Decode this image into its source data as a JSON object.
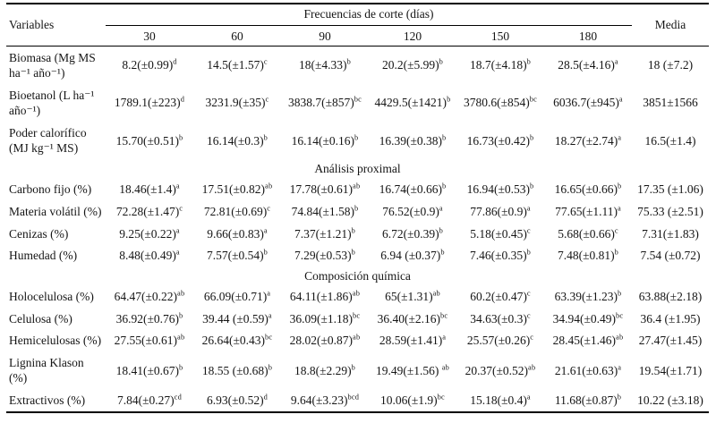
{
  "colors": {
    "text": "#151515",
    "background": "#ffffff",
    "rule": "#000000"
  },
  "table": {
    "header": {
      "variables": "Variables",
      "spanner": "Frecuencias de corte (días)",
      "frequencies": [
        "30",
        "60",
        "90",
        "120",
        "150",
        "180"
      ],
      "media": "Media"
    },
    "rows": [
      {
        "type": "data",
        "variable": "Biomasa (Mg MS ha⁻¹ año⁻¹)",
        "cells": [
          {
            "t": "8.2(±0.99)",
            "s": "d"
          },
          {
            "t": "14.5(±1.57)",
            "s": "c"
          },
          {
            "t": "18(±4.33)",
            "s": "b"
          },
          {
            "t": "20.2(±5.99)",
            "s": "b"
          },
          {
            "t": "18.7(±4.18)",
            "s": "b"
          },
          {
            "t": "28.5(±4.16)",
            "s": "a"
          }
        ],
        "media": "18 (±7.2)"
      },
      {
        "type": "data",
        "variable": "Bioetanol (L ha⁻¹ año⁻¹)",
        "cells": [
          {
            "t": "1789.1(±223)",
            "s": "d"
          },
          {
            "t": "3231.9(±35)",
            "s": "c"
          },
          {
            "t": "3838.7(±857)",
            "s": "bc"
          },
          {
            "t": "4429.5(±1421)",
            "s": "b"
          },
          {
            "t": "3780.6(±854)",
            "s": "bc"
          },
          {
            "t": "6036.7(±945)",
            "s": "a"
          }
        ],
        "media": "3851±1566"
      },
      {
        "type": "data",
        "variable": "Poder calorífico (MJ kg⁻¹ MS)",
        "cells": [
          {
            "t": "15.70(±0.51)",
            "s": "b"
          },
          {
            "t": "16.14(±0.3)",
            "s": "b"
          },
          {
            "t": "16.14(±0.16)",
            "s": "b"
          },
          {
            "t": "16.39(±0.38)",
            "s": "b"
          },
          {
            "t": "16.73(±0.42)",
            "s": "b"
          },
          {
            "t": "18.27(±2.74)",
            "s": "a"
          }
        ],
        "media": "16.5(±1.4)"
      },
      {
        "type": "section",
        "label": "Análisis proximal"
      },
      {
        "type": "data",
        "variable": "Carbono fijo (%)",
        "cells": [
          {
            "t": "18.46(±1.4)",
            "s": "a"
          },
          {
            "t": "17.51(±0.82)",
            "s": "ab"
          },
          {
            "t": "17.78(±0.61)",
            "s": "ab"
          },
          {
            "t": "16.74(±0.66)",
            "s": "b"
          },
          {
            "t": "16.94(±0.53)",
            "s": "b"
          },
          {
            "t": "16.65(±0.66)",
            "s": "b"
          }
        ],
        "media": "17.35 (±1.06)"
      },
      {
        "type": "data",
        "variable": "Materia volátil (%)",
        "cells": [
          {
            "t": "72.28(±1.47)",
            "s": "c"
          },
          {
            "t": "72.81(±0.69)",
            "s": "c"
          },
          {
            "t": "74.84(±1.58)",
            "s": "b"
          },
          {
            "t": "76.52(±0.9)",
            "s": "a"
          },
          {
            "t": "77.86(±0.9)",
            "s": "a"
          },
          {
            "t": "77.65(±1.11)",
            "s": "a"
          }
        ],
        "media": "75.33 (±2.51)"
      },
      {
        "type": "data",
        "variable": "Cenizas (%)",
        "cells": [
          {
            "t": "9.25(±0.22)",
            "s": "a"
          },
          {
            "t": "9.66(±0.83)",
            "s": "a"
          },
          {
            "t": "7.37(±1.21)",
            "s": "b"
          },
          {
            "t": "6.72(±0.39)",
            "s": "b"
          },
          {
            "t": "5.18(±0.45)",
            "s": "c"
          },
          {
            "t": "5.68(±0.66)",
            "s": "c"
          }
        ],
        "media": "7.31(±1.83)"
      },
      {
        "type": "data",
        "variable": "Humedad (%)",
        "cells": [
          {
            "t": "8.48(±0.49)",
            "s": "a"
          },
          {
            "t": "7.57(±0.54)",
            "s": "b"
          },
          {
            "t": "7.29(±0.53)",
            "s": "b"
          },
          {
            "t": "6.94 (±0.37)",
            "s": "b"
          },
          {
            "t": "7.46(±0.35)",
            "s": "b"
          },
          {
            "t": "7.48(±0.81)",
            "s": "b"
          }
        ],
        "media": "7.54 (±0.72)"
      },
      {
        "type": "section",
        "label": "Composición química"
      },
      {
        "type": "data",
        "variable": "Holocelulosa (%)",
        "cells": [
          {
            "t": "64.47(±0.22)",
            "s": "ab"
          },
          {
            "t": "66.09(±0.71)",
            "s": "a"
          },
          {
            "t": "64.11(±1.86)",
            "s": "ab"
          },
          {
            "t": "65(±1.31)",
            "s": "ab"
          },
          {
            "t": "60.2(±0.47)",
            "s": "c"
          },
          {
            "t": "63.39(±1.23)",
            "s": "b"
          }
        ],
        "media": "63.88(±2.18)"
      },
      {
        "type": "data",
        "variable": "Celulosa (%)",
        "cells": [
          {
            "t": "36.92(±0.76)",
            "s": "b"
          },
          {
            "t": "39.44 (±0.59)",
            "s": "a"
          },
          {
            "t": "36.09(±1.18)",
            "s": "bc"
          },
          {
            "t": "36.40(±2.16)",
            "s": "bc"
          },
          {
            "t": "34.63(±0.3)",
            "s": "c"
          },
          {
            "t": "34.94(±0.49)",
            "s": "bc"
          }
        ],
        "media": "36.4 (±1.95)"
      },
      {
        "type": "data",
        "variable": "Hemicelulosas (%)",
        "cells": [
          {
            "t": "27.55(±0.61)",
            "s": "ab"
          },
          {
            "t": "26.64(±0.43)",
            "s": "bc"
          },
          {
            "t": "28.02(±0.87)",
            "s": "ab"
          },
          {
            "t": "28.59(±1.41)",
            "s": "a"
          },
          {
            "t": "25.57(±0.26)",
            "s": "c"
          },
          {
            "t": "28.45(±1.46)",
            "s": "ab"
          }
        ],
        "media": "27.47(±1.45)"
      },
      {
        "type": "data",
        "variable": "Lignina Klason (%)",
        "cells": [
          {
            "t": "18.41(±0.67)",
            "s": "b"
          },
          {
            "t": "18.55 (±0.68)",
            "s": "b"
          },
          {
            "t": "18.8(±2.29)",
            "s": "b"
          },
          {
            "t": "19.49(±1.56) ",
            "s": "ab"
          },
          {
            "t": "20.37(±0.52)",
            "s": "ab"
          },
          {
            "t": "21.61(±0.63)",
            "s": "a"
          }
        ],
        "media": "19.54(±1.71)"
      },
      {
        "type": "data",
        "variable": "Extractivos (%)",
        "cells": [
          {
            "t": "7.84(±0.27)",
            "s": "cd"
          },
          {
            "t": "6.93(±0.52)",
            "s": "d"
          },
          {
            "t": "9.64(±3.23)",
            "s": "bcd"
          },
          {
            "t": "10.06(±1.9)",
            "s": "bc"
          },
          {
            "t": "15.18(±0.4)",
            "s": "a"
          },
          {
            "t": "11.68(±0.87)",
            "s": "b"
          }
        ],
        "media": "10.22 (±3.18)"
      }
    ]
  }
}
